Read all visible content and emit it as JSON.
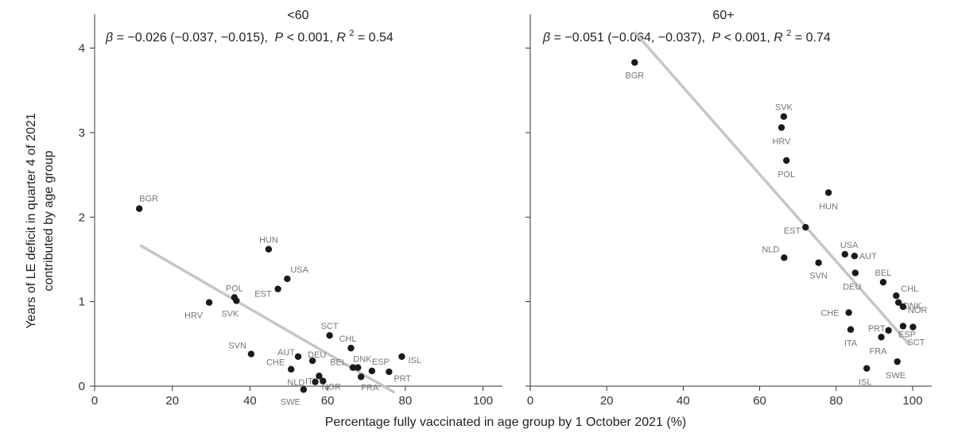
{
  "chart_data": {
    "type": "scatter",
    "xlabel": "Percentage fully vaccinated in age group by 1 October 2021 (%)",
    "ylabel_lines": [
      "Years of LE deficit in quarter 4 of 2021",
      "contributed by age group"
    ],
    "xlim": [
      0,
      105
    ],
    "ylim": [
      0,
      4.4
    ],
    "xticks": [
      0,
      20,
      40,
      60,
      80,
      100
    ],
    "yticks": [
      0,
      1,
      2,
      3,
      4
    ],
    "grid": false,
    "panels": [
      {
        "title": "<60",
        "stats": {
          "beta": "β",
          "equals": " = ",
          "beta_value": "−0.026 (−0.037, −0.015),",
          "p": "P",
          "p_value": " < 0.001, ",
          "r": "R",
          "r_exp": "2",
          "r_value": " = 0.54"
        },
        "fit_line": {
          "x": [
            12,
            77
          ],
          "y": [
            1.66,
            -0.07
          ]
        },
        "points": [
          {
            "label": "BGR",
            "x": 11.5,
            "y": 2.1
          },
          {
            "label": "HRV",
            "x": 29.5,
            "y": 0.99
          },
          {
            "label": "POL",
            "x": 36.0,
            "y": 1.05
          },
          {
            "label": "SVK",
            "x": 36.5,
            "y": 1.01
          },
          {
            "label": "HUN",
            "x": 44.8,
            "y": 1.62
          },
          {
            "label": "EST",
            "x": 47.2,
            "y": 1.15
          },
          {
            "label": "USA",
            "x": 49.6,
            "y": 1.27
          },
          {
            "label": "SCT",
            "x": 60.5,
            "y": 0.6
          },
          {
            "label": "CHL",
            "x": 66.0,
            "y": 0.45
          },
          {
            "label": "SVN",
            "x": 40.3,
            "y": 0.38
          },
          {
            "label": "AUT",
            "x": 52.4,
            "y": 0.35
          },
          {
            "label": "DEU",
            "x": 56.1,
            "y": 0.3
          },
          {
            "label": "CHE",
            "x": 50.6,
            "y": 0.2
          },
          {
            "label": "NLD",
            "x": 57.8,
            "y": 0.12
          },
          {
            "label": "ITA",
            "x": 58.8,
            "y": 0.06
          },
          {
            "label": "NOR",
            "x": 56.8,
            "y": 0.05
          },
          {
            "label": "SWE",
            "x": 53.8,
            "y": -0.04
          },
          {
            "label": "BEL",
            "x": 66.5,
            "y": 0.22
          },
          {
            "label": "DNK",
            "x": 67.8,
            "y": 0.22
          },
          {
            "label": "ESP",
            "x": 71.4,
            "y": 0.18
          },
          {
            "label": "FRA",
            "x": 68.6,
            "y": 0.11
          },
          {
            "label": "PRT",
            "x": 75.8,
            "y": 0.17
          },
          {
            "label": "ISL",
            "x": 79.1,
            "y": 0.35
          }
        ]
      },
      {
        "title": "60+",
        "stats": {
          "beta": "β",
          "equals": " = ",
          "beta_value": "−0.051 (−0.064, −0.037),",
          "p": "P",
          "p_value": " < 0.001, ",
          "r": "R",
          "r_exp": "2",
          "r_value": " = 0.74"
        },
        "fit_line": {
          "x": [
            27.5,
            99
          ],
          "y": [
            4.18,
            0.5
          ]
        },
        "points": [
          {
            "label": "BGR",
            "x": 27.3,
            "y": 3.83
          },
          {
            "label": "SVK",
            "x": 66.3,
            "y": 3.19
          },
          {
            "label": "HRV",
            "x": 65.7,
            "y": 3.06
          },
          {
            "label": "POL",
            "x": 67.0,
            "y": 2.67
          },
          {
            "label": "HUN",
            "x": 78.0,
            "y": 2.29
          },
          {
            "label": "EST",
            "x": 72.0,
            "y": 1.88
          },
          {
            "label": "NLD",
            "x": 66.4,
            "y": 1.52
          },
          {
            "label": "USA",
            "x": 82.3,
            "y": 1.56
          },
          {
            "label": "AUT",
            "x": 84.8,
            "y": 1.54
          },
          {
            "label": "SVN",
            "x": 75.4,
            "y": 1.46
          },
          {
            "label": "DEU",
            "x": 85.0,
            "y": 1.34
          },
          {
            "label": "BEL",
            "x": 92.3,
            "y": 1.23
          },
          {
            "label": "CHL",
            "x": 95.7,
            "y": 1.07
          },
          {
            "label": "DNK",
            "x": 96.3,
            "y": 0.99
          },
          {
            "label": "NOR",
            "x": 97.5,
            "y": 0.94
          },
          {
            "label": "CHE",
            "x": 83.3,
            "y": 0.87
          },
          {
            "label": "PRT",
            "x": 93.7,
            "y": 0.66
          },
          {
            "label": "ESP",
            "x": 97.5,
            "y": 0.71
          },
          {
            "label": "SCT",
            "x": 100.1,
            "y": 0.7
          },
          {
            "label": "ITA",
            "x": 83.8,
            "y": 0.67
          },
          {
            "label": "FRA",
            "x": 91.8,
            "y": 0.58
          },
          {
            "label": "SWE",
            "x": 96.0,
            "y": 0.29
          },
          {
            "label": "ISL",
            "x": 88.0,
            "y": 0.21
          }
        ]
      }
    ]
  }
}
